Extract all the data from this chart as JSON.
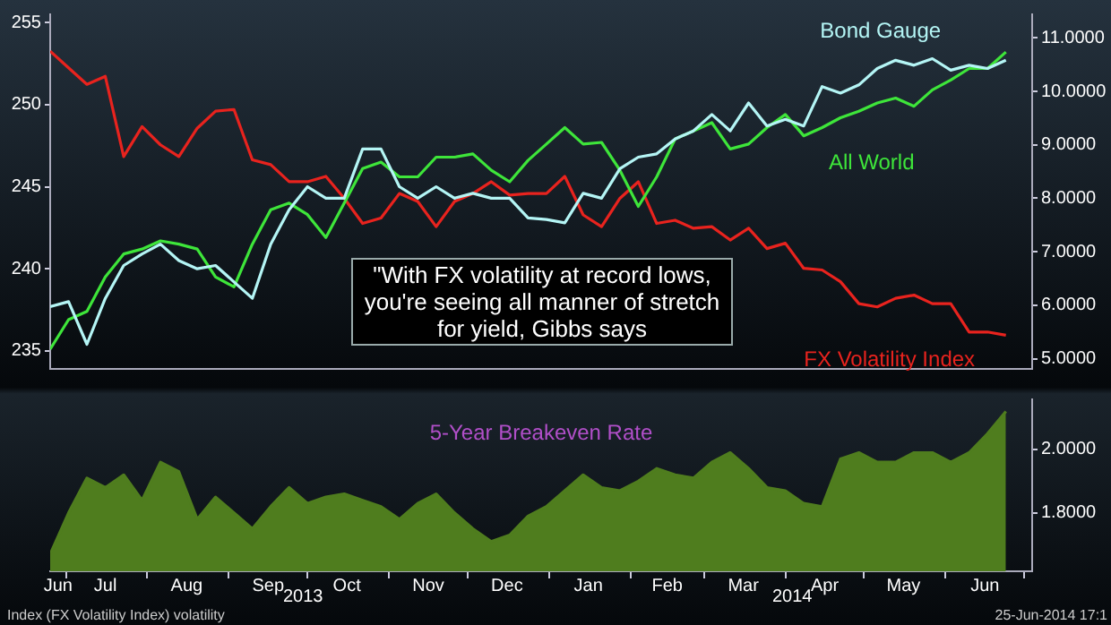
{
  "chart_data": [
    {
      "type": "line",
      "tick_labels": "y",
      "xlim": [
        "2013-06-25",
        "2014-07-04"
      ],
      "ylim": [
        233.9,
        255.5
      ],
      "yticks": [
        235,
        240,
        245,
        250,
        255
      ],
      "y2lim": [
        4.81,
        11.44
      ],
      "y2ticks": [
        {
          "value": 5,
          "label": "5.0000"
        },
        {
          "value": 6,
          "label": "6.0000"
        },
        {
          "value": 7,
          "label": "7.0000"
        },
        {
          "value": 8,
          "label": "8.0000"
        },
        {
          "value": 9,
          "label": "9.0000"
        },
        {
          "value": 10,
          "label": "10.0000"
        },
        {
          "value": 11,
          "label": "11.0000"
        }
      ],
      "x": [
        "2013-06-25",
        "2013-07-02",
        "2013-07-09",
        "2013-07-16",
        "2013-07-23",
        "2013-07-30",
        "2013-08-06",
        "2013-08-13",
        "2013-08-20",
        "2013-08-27",
        "2013-09-03",
        "2013-09-10",
        "2013-09-17",
        "2013-09-24",
        "2013-10-01",
        "2013-10-08",
        "2013-10-15",
        "2013-10-22",
        "2013-10-29",
        "2013-11-05",
        "2013-11-12",
        "2013-11-19",
        "2013-11-26",
        "2013-12-03",
        "2013-12-10",
        "2013-12-17",
        "2013-12-24",
        "2013-12-31",
        "2014-01-07",
        "2014-01-14",
        "2014-01-21",
        "2014-01-28",
        "2014-02-04",
        "2014-02-11",
        "2014-02-18",
        "2014-02-25",
        "2014-03-04",
        "2014-03-11",
        "2014-03-18",
        "2014-03-25",
        "2014-04-01",
        "2014-04-08",
        "2014-04-15",
        "2014-04-22",
        "2014-04-29",
        "2014-05-06",
        "2014-05-13",
        "2014-05-20",
        "2014-05-27",
        "2014-06-03",
        "2014-06-10",
        "2014-06-17",
        "2014-06-24"
      ],
      "series": [
        {
          "name": "Bond Gauge",
          "color": "#b4f5f5",
          "values": [
            237.7,
            238.0,
            235.4,
            238.2,
            240.2,
            240.9,
            241.5,
            240.5,
            240.0,
            240.2,
            239.2,
            238.2,
            241.5,
            243.6,
            245.0,
            244.3,
            244.3,
            247.3,
            247.3,
            245.0,
            244.3,
            245.0,
            244.3,
            244.6,
            244.3,
            244.3,
            243.1,
            243.0,
            242.8,
            244.6,
            244.3,
            246.1,
            246.8,
            247.0,
            247.9,
            248.4,
            249.4,
            248.4,
            250.1,
            248.7,
            249.1,
            248.7,
            251.1,
            250.7,
            251.2,
            252.2,
            252.7,
            252.4,
            252.8,
            252.1,
            252.4,
            252.2,
            252.7
          ]
        },
        {
          "name": "All World",
          "color": "#3ee53a",
          "values": [
            235.1,
            236.9,
            237.4,
            239.5,
            240.9,
            241.2,
            241.7,
            241.5,
            241.2,
            239.5,
            238.9,
            241.5,
            243.6,
            244.0,
            243.3,
            241.9,
            244.0,
            246.1,
            246.5,
            245.6,
            245.6,
            246.8,
            246.8,
            247.0,
            246.0,
            245.3,
            246.6,
            247.6,
            248.6,
            247.6,
            247.7,
            246.0,
            243.8,
            245.6,
            247.9,
            248.4,
            248.9,
            247.3,
            247.6,
            248.6,
            249.4,
            248.1,
            248.6,
            249.2,
            249.6,
            250.1,
            250.4,
            249.9,
            250.9,
            251.5,
            252.2,
            252.2,
            253.2
          ]
        },
        {
          "name": "FX Volatility Index",
          "color": "#e8231e",
          "axis": "y2",
          "values": [
            10.75,
            10.44,
            10.13,
            10.28,
            8.78,
            9.34,
            9.0,
            8.78,
            9.31,
            9.63,
            9.66,
            8.72,
            8.63,
            8.31,
            8.31,
            8.41,
            8.0,
            7.53,
            7.63,
            8.09,
            7.94,
            7.47,
            7.94,
            8.09,
            8.31,
            8.06,
            8.09,
            8.09,
            8.41,
            7.69,
            7.47,
            8.0,
            8.31,
            7.53,
            7.59,
            7.44,
            7.47,
            7.22,
            7.44,
            7.06,
            7.16,
            6.69,
            6.66,
            6.44,
            6.03,
            5.97,
            6.13,
            6.19,
            6.03,
            6.03,
            5.5,
            5.5,
            5.44
          ]
        }
      ],
      "annotations": [
        "\"With FX volatility at record lows, you're seeing all manner of stretch for yield, Gibbs says"
      ]
    },
    {
      "type": "area",
      "xlim": [
        "2013-06-25",
        "2014-07-04"
      ],
      "y2lim": [
        1.616,
        2.158
      ],
      "y2ticks": [
        {
          "value": 1.8,
          "label": "1.8000"
        },
        {
          "value": 2,
          "label": "2.0000"
        }
      ],
      "xticks": [
        {
          "value": "2013-06-28",
          "label": "Jun"
        },
        {
          "value": "2013-07-01",
          "label": null
        },
        {
          "value": "2013-07-16",
          "label": "Jul"
        },
        {
          "value": "2013-08-01",
          "label": null
        },
        {
          "value": "2013-08-16",
          "label": "Aug"
        },
        {
          "value": "2013-09-01",
          "label": null
        },
        {
          "value": "2013-09-16",
          "label": "Sep"
        },
        {
          "value": "2013-10-01",
          "label": null
        },
        {
          "value": "2013-10-16",
          "label": "Oct"
        },
        {
          "value": "2013-11-01",
          "label": null
        },
        {
          "value": "2013-11-16",
          "label": "Nov"
        },
        {
          "value": "2013-12-01",
          "label": null
        },
        {
          "value": "2013-12-16",
          "label": "Dec"
        },
        {
          "value": "2014-01-01",
          "label": null
        },
        {
          "value": "2014-01-16",
          "label": "Jan"
        },
        {
          "value": "2014-02-01",
          "label": null
        },
        {
          "value": "2014-02-15",
          "label": "Feb"
        },
        {
          "value": "2014-03-01",
          "label": null
        },
        {
          "value": "2014-03-16",
          "label": "Mar"
        },
        {
          "value": "2014-04-01",
          "label": null
        },
        {
          "value": "2014-04-16",
          "label": "Apr"
        },
        {
          "value": "2014-05-01",
          "label": null
        },
        {
          "value": "2014-05-16",
          "label": "May"
        },
        {
          "value": "2014-06-01",
          "label": null
        },
        {
          "value": "2014-06-16",
          "label": "Jun"
        },
        {
          "value": "2014-07-01",
          "label": null
        }
      ],
      "x": [
        "2013-06-25",
        "2013-07-02",
        "2013-07-09",
        "2013-07-16",
        "2013-07-23",
        "2013-07-30",
        "2013-08-06",
        "2013-08-13",
        "2013-08-20",
        "2013-08-27",
        "2013-09-03",
        "2013-09-10",
        "2013-09-17",
        "2013-09-24",
        "2013-10-01",
        "2013-10-08",
        "2013-10-15",
        "2013-10-22",
        "2013-10-29",
        "2013-11-05",
        "2013-11-12",
        "2013-11-19",
        "2013-11-26",
        "2013-12-03",
        "2013-12-10",
        "2013-12-17",
        "2013-12-24",
        "2013-12-31",
        "2014-01-07",
        "2014-01-14",
        "2014-01-21",
        "2014-01-28",
        "2014-02-04",
        "2014-02-11",
        "2014-02-18",
        "2014-02-25",
        "2014-03-04",
        "2014-03-11",
        "2014-03-18",
        "2014-03-25",
        "2014-04-01",
        "2014-04-08",
        "2014-04-15",
        "2014-04-22",
        "2014-04-29",
        "2014-05-06",
        "2014-05-13",
        "2014-05-20",
        "2014-05-27",
        "2014-06-03",
        "2014-06-10",
        "2014-06-17",
        "2014-06-24"
      ],
      "series": [
        {
          "name": "5-Year Breakeven Rate",
          "color": "#4f7d1e",
          "axis": "y2",
          "values": [
            1.67,
            1.8,
            1.91,
            1.88,
            1.92,
            1.84,
            1.96,
            1.93,
            1.78,
            1.85,
            1.8,
            1.75,
            1.82,
            1.88,
            1.83,
            1.85,
            1.86,
            1.84,
            1.82,
            1.78,
            1.83,
            1.86,
            1.8,
            1.75,
            1.71,
            1.73,
            1.79,
            1.82,
            1.87,
            1.92,
            1.88,
            1.87,
            1.9,
            1.94,
            1.92,
            1.91,
            1.96,
            1.99,
            1.94,
            1.88,
            1.87,
            1.83,
            1.82,
            1.97,
            1.99,
            1.96,
            1.96,
            1.99,
            1.99,
            1.96,
            1.99,
            2.05,
            2.12
          ]
        }
      ],
      "annotations": [
        "2013",
        "2014",
        "Index (FX Volatility Index) volatility",
        "25-Jun-2014 17:1"
      ]
    }
  ]
}
